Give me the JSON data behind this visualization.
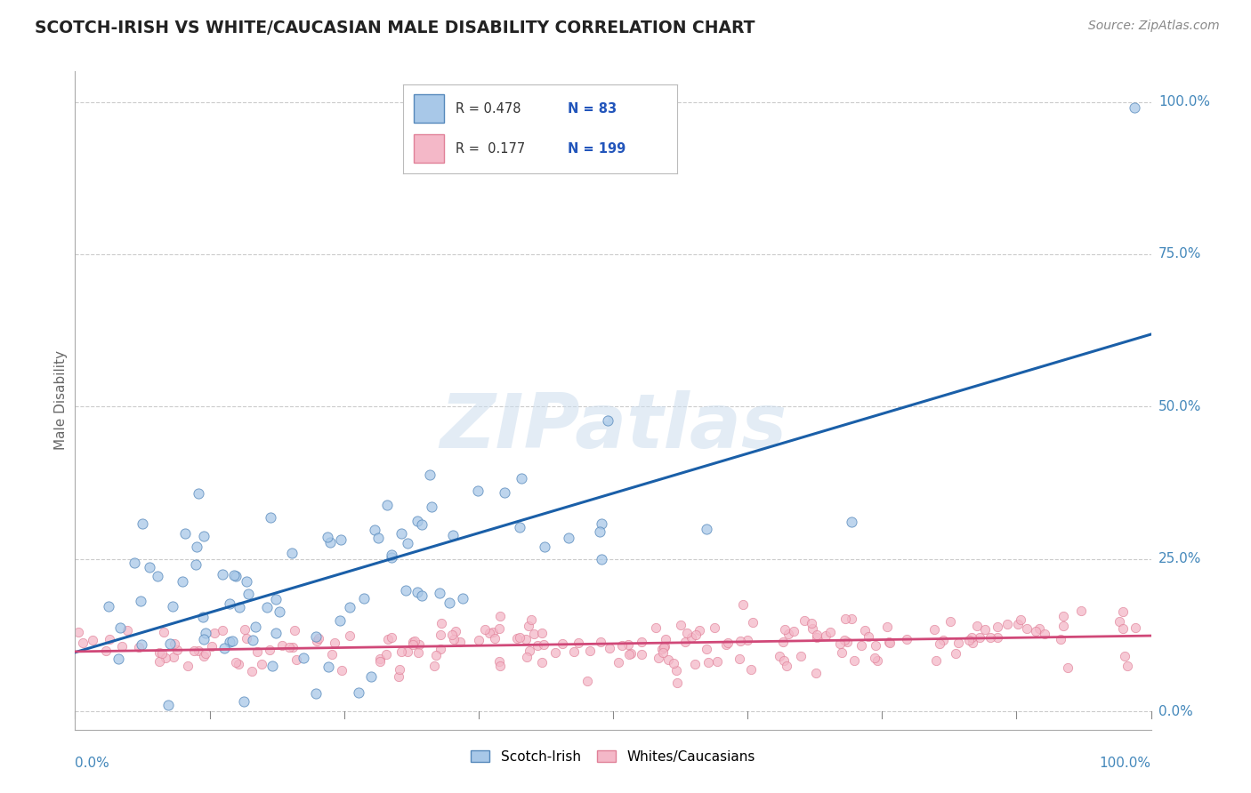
{
  "title": "SCOTCH-IRISH VS WHITE/CAUCASIAN MALE DISABILITY CORRELATION CHART",
  "source": "Source: ZipAtlas.com",
  "ylabel": "Male Disability",
  "watermark": "ZIPatlas",
  "legend_blue_r": "0.478",
  "legend_blue_n": "83",
  "legend_pink_r": "0.177",
  "legend_pink_n": "199",
  "blue_scatter_color": "#a8c8e8",
  "blue_scatter_edge": "#5588bb",
  "pink_scatter_color": "#f4b8c8",
  "pink_scatter_edge": "#e08098",
  "blue_line_color": "#1a5fa8",
  "pink_line_color": "#d04878",
  "grid_color": "#cccccc",
  "background_color": "#ffffff",
  "title_color": "#222222",
  "axis_label_color": "#666666",
  "tick_label_color": "#4488bb",
  "legend_text_color": "#333333",
  "legend_n_color": "#2255bb",
  "blue_n": 83,
  "pink_n": 199,
  "blue_r": 0.478,
  "pink_r": 0.177,
  "blue_seed": 42,
  "pink_seed": 123
}
